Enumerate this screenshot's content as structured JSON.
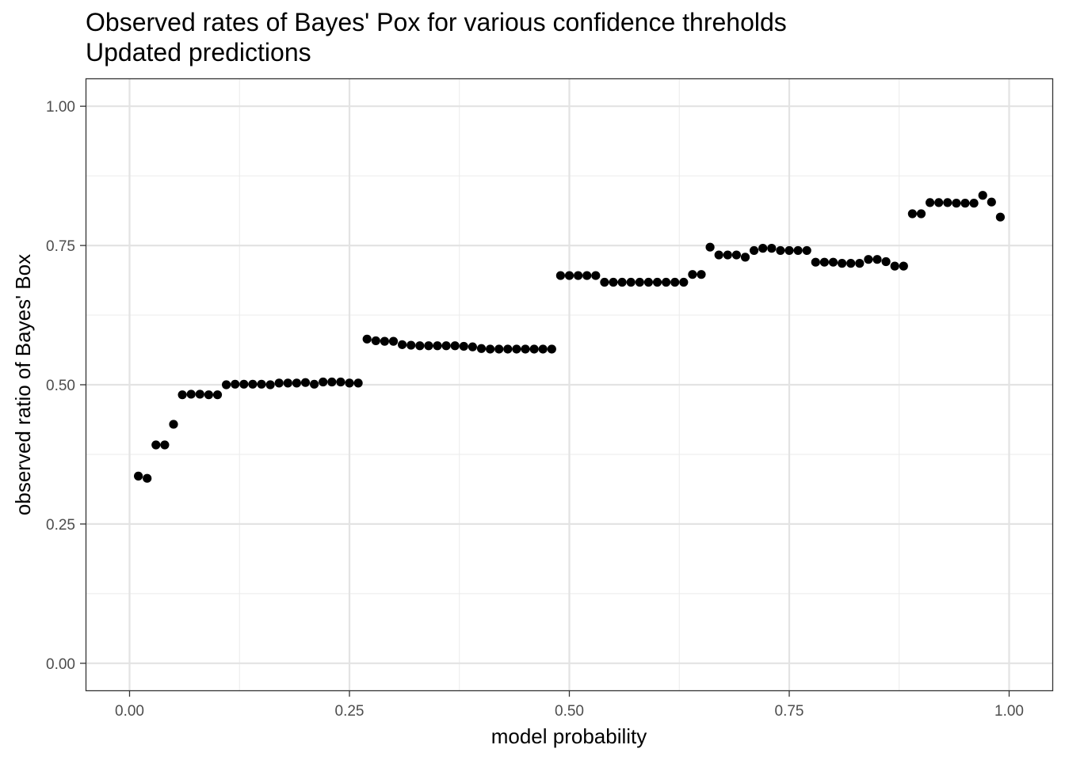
{
  "chart_data": {
    "type": "scatter",
    "title": "Observed rates of Bayes' Pox for various confidence threholds",
    "subtitle": "Updated predictions",
    "xlabel": "model probability",
    "ylabel": "observed ratio of Bayes' Box",
    "xlim": [
      -0.05,
      1.05
    ],
    "ylim": [
      -0.05,
      1.05
    ],
    "x_ticks": [
      0.0,
      0.25,
      0.5,
      0.75,
      1.0
    ],
    "x_tick_labels": [
      "0.00",
      "0.25",
      "0.50",
      "0.75",
      "1.00"
    ],
    "y_ticks": [
      0.0,
      0.25,
      0.5,
      0.75,
      1.0
    ],
    "y_tick_labels": [
      "0.00",
      "0.25",
      "0.50",
      "0.75",
      "1.00"
    ],
    "grid": true,
    "point_color": "#000000",
    "x": [
      0.01,
      0.02,
      0.03,
      0.04,
      0.05,
      0.06,
      0.07,
      0.08,
      0.09,
      0.1,
      0.11,
      0.12,
      0.13,
      0.14,
      0.15,
      0.16,
      0.17,
      0.18,
      0.19,
      0.2,
      0.21,
      0.22,
      0.23,
      0.24,
      0.25,
      0.26,
      0.27,
      0.28,
      0.29,
      0.3,
      0.31,
      0.32,
      0.33,
      0.34,
      0.35,
      0.36,
      0.37,
      0.38,
      0.39,
      0.4,
      0.41,
      0.42,
      0.43,
      0.44,
      0.45,
      0.46,
      0.47,
      0.48,
      0.49,
      0.5,
      0.51,
      0.52,
      0.53,
      0.54,
      0.55,
      0.56,
      0.57,
      0.58,
      0.59,
      0.6,
      0.61,
      0.62,
      0.63,
      0.64,
      0.65,
      0.66,
      0.67,
      0.68,
      0.69,
      0.7,
      0.71,
      0.72,
      0.73,
      0.74,
      0.75,
      0.76,
      0.77,
      0.78,
      0.79,
      0.8,
      0.81,
      0.82,
      0.83,
      0.84,
      0.85,
      0.86,
      0.87,
      0.88,
      0.89,
      0.9,
      0.91,
      0.92,
      0.93,
      0.94,
      0.95,
      0.96,
      0.97,
      0.98,
      0.99
    ],
    "y": [
      0.336,
      0.332,
      0.392,
      0.392,
      0.429,
      0.482,
      0.483,
      0.483,
      0.482,
      0.482,
      0.5,
      0.501,
      0.501,
      0.501,
      0.501,
      0.5,
      0.503,
      0.503,
      0.503,
      0.504,
      0.501,
      0.505,
      0.505,
      0.505,
      0.503,
      0.503,
      0.582,
      0.579,
      0.578,
      0.578,
      0.572,
      0.571,
      0.57,
      0.57,
      0.57,
      0.57,
      0.57,
      0.569,
      0.568,
      0.565,
      0.564,
      0.564,
      0.564,
      0.564,
      0.564,
      0.564,
      0.564,
      0.564,
      0.696,
      0.696,
      0.696,
      0.696,
      0.696,
      0.684,
      0.684,
      0.684,
      0.684,
      0.684,
      0.684,
      0.684,
      0.684,
      0.684,
      0.684,
      0.698,
      0.698,
      0.747,
      0.733,
      0.733,
      0.733,
      0.729,
      0.741,
      0.745,
      0.745,
      0.741,
      0.741,
      0.741,
      0.741,
      0.72,
      0.72,
      0.72,
      0.718,
      0.718,
      0.718,
      0.725,
      0.725,
      0.721,
      0.713,
      0.713,
      0.807,
      0.807,
      0.827,
      0.827,
      0.827,
      0.826,
      0.826,
      0.826,
      0.84,
      0.828,
      0.801
    ]
  }
}
